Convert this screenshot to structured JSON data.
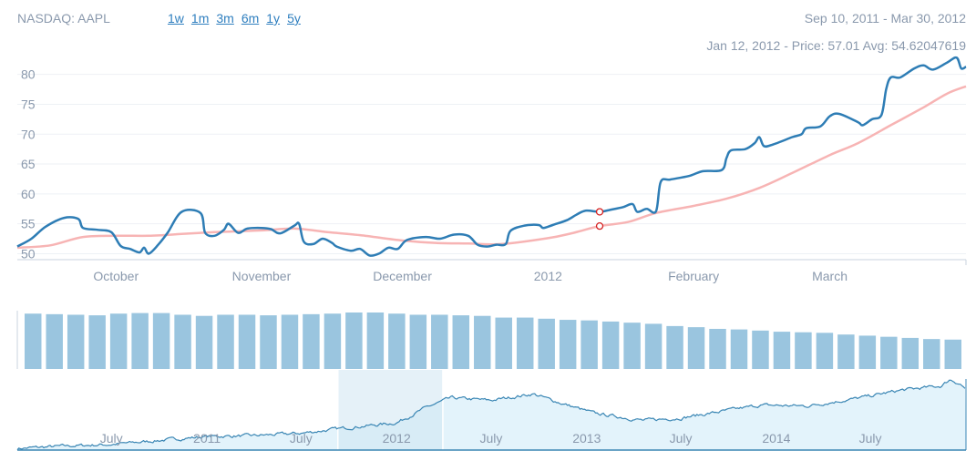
{
  "header": {
    "ticker": "NASDAQ: AAPL",
    "ranges": [
      "1w",
      "1m",
      "3m",
      "6m",
      "1y",
      "5y"
    ],
    "date_range": "Sep 10, 2011 - Mar 30, 2012",
    "tooltip": "Jan 12, 2012 - Price: 57.01 Avg: 54.62047619"
  },
  "colors": {
    "price": "#2e7db5",
    "avg": "#f7b4b4",
    "volume": "#9ac5df",
    "navigator_fill": "#e3f3fb",
    "navigator_line": "#3a86b4",
    "selection": "#cfe5f3",
    "marker": "#d42020",
    "text": "#8a99ad"
  },
  "chart_data": [
    {
      "type": "line",
      "name": "main-price-chart",
      "x_start": "2011-09-10",
      "x_end": "2012-03-30",
      "ylim": [
        49,
        83
      ],
      "yticks": [
        50,
        55,
        60,
        65,
        70,
        75,
        80
      ],
      "xticks": [
        {
          "date": "2011-10-01",
          "label": "October"
        },
        {
          "date": "2011-11-01",
          "label": "November"
        },
        {
          "date": "2011-12-01",
          "label": "December"
        },
        {
          "date": "2012-01-01",
          "label": "2012"
        },
        {
          "date": "2012-02-01",
          "label": "February"
        },
        {
          "date": "2012-03-01",
          "label": "March"
        }
      ],
      "grid": true,
      "highlight": {
        "date": "2012-01-12",
        "price": 57.01,
        "avg": 54.62047619
      },
      "series": [
        {
          "role": "price",
          "points": [
            [
              "2011-09-10",
              51.2
            ],
            [
              "2011-09-13",
              52.5
            ],
            [
              "2011-09-16",
              54.5
            ],
            [
              "2011-09-20",
              56.0
            ],
            [
              "2011-09-23",
              55.8
            ],
            [
              "2011-09-24",
              54.3
            ],
            [
              "2011-09-27",
              54.0
            ],
            [
              "2011-09-30",
              53.6
            ],
            [
              "2011-10-02",
              51.3
            ],
            [
              "2011-10-04",
              50.8
            ],
            [
              "2011-10-06",
              50.2
            ],
            [
              "2011-10-07",
              51.0
            ],
            [
              "2011-10-08",
              50.0
            ],
            [
              "2011-10-10",
              51.5
            ],
            [
              "2011-10-12",
              53.5
            ],
            [
              "2011-10-15",
              57.0
            ],
            [
              "2011-10-19",
              56.8
            ],
            [
              "2011-10-20",
              53.5
            ],
            [
              "2011-10-22",
              53.0
            ],
            [
              "2011-10-24",
              54.0
            ],
            [
              "2011-10-25",
              55.0
            ],
            [
              "2011-10-27",
              53.5
            ],
            [
              "2011-10-29",
              54.2
            ],
            [
              "2011-11-01",
              54.3
            ],
            [
              "2011-11-03",
              54.1
            ],
            [
              "2011-11-05",
              53.4
            ],
            [
              "2011-11-08",
              54.7
            ],
            [
              "2011-11-09",
              55.0
            ],
            [
              "2011-11-10",
              52.0
            ],
            [
              "2011-11-12",
              51.6
            ],
            [
              "2011-11-14",
              52.5
            ],
            [
              "2011-11-16",
              51.8
            ],
            [
              "2011-11-17",
              51.2
            ],
            [
              "2011-11-20",
              50.5
            ],
            [
              "2011-11-22",
              50.8
            ],
            [
              "2011-11-24",
              49.7
            ],
            [
              "2011-11-26",
              50.0
            ],
            [
              "2011-11-28",
              51.0
            ],
            [
              "2011-11-30",
              50.8
            ],
            [
              "2011-12-02",
              52.3
            ],
            [
              "2011-12-06",
              52.8
            ],
            [
              "2011-12-09",
              52.5
            ],
            [
              "2011-12-12",
              53.2
            ],
            [
              "2011-12-15",
              53.0
            ],
            [
              "2011-12-17",
              51.5
            ],
            [
              "2011-12-19",
              51.2
            ],
            [
              "2011-12-21",
              51.5
            ],
            [
              "2011-12-23",
              51.6
            ],
            [
              "2011-12-24",
              53.8
            ],
            [
              "2011-12-27",
              54.7
            ],
            [
              "2011-12-30",
              54.8
            ],
            [
              "2011-12-31",
              54.3
            ],
            [
              "2012-01-02",
              54.8
            ],
            [
              "2012-01-05",
              55.6
            ],
            [
              "2012-01-07",
              56.5
            ],
            [
              "2012-01-09",
              57.2
            ],
            [
              "2012-01-12",
              57.01
            ],
            [
              "2012-01-14",
              57.3
            ],
            [
              "2012-01-17",
              57.8
            ],
            [
              "2012-01-19",
              58.3
            ],
            [
              "2012-01-20",
              57.0
            ],
            [
              "2012-01-22",
              57.5
            ],
            [
              "2012-01-24",
              57.1
            ],
            [
              "2012-01-25",
              62.0
            ],
            [
              "2012-01-27",
              62.4
            ],
            [
              "2012-01-31",
              63.0
            ],
            [
              "2012-02-03",
              63.8
            ],
            [
              "2012-02-07",
              64.0
            ],
            [
              "2012-02-08",
              66.0
            ],
            [
              "2012-02-09",
              67.3
            ],
            [
              "2012-02-12",
              67.5
            ],
            [
              "2012-02-14",
              68.5
            ],
            [
              "2012-02-15",
              69.5
            ],
            [
              "2012-02-16",
              68.0
            ],
            [
              "2012-02-18",
              68.3
            ],
            [
              "2012-02-22",
              69.5
            ],
            [
              "2012-02-24",
              70.0
            ],
            [
              "2012-02-25",
              71.0
            ],
            [
              "2012-02-28",
              71.3
            ],
            [
              "2012-03-01",
              73.0
            ],
            [
              "2012-03-03",
              73.4
            ],
            [
              "2012-03-07",
              72.0
            ],
            [
              "2012-03-08",
              71.5
            ],
            [
              "2012-03-10",
              72.5
            ],
            [
              "2012-03-12",
              73.2
            ],
            [
              "2012-03-13",
              77.5
            ],
            [
              "2012-03-14",
              79.5
            ],
            [
              "2012-03-16",
              79.5
            ],
            [
              "2012-03-19",
              81.0
            ],
            [
              "2012-03-21",
              81.5
            ],
            [
              "2012-03-23",
              80.8
            ],
            [
              "2012-03-26",
              82.0
            ],
            [
              "2012-03-28",
              82.8
            ],
            [
              "2012-03-29",
              81.0
            ],
            [
              "2012-03-30",
              81.3
            ]
          ]
        },
        {
          "role": "avg",
          "points": [
            [
              "2011-09-10",
              51.0
            ],
            [
              "2011-09-17",
              51.4
            ],
            [
              "2011-09-24",
              52.8
            ],
            [
              "2011-10-01",
              53.0
            ],
            [
              "2011-10-08",
              53.0
            ],
            [
              "2011-10-15",
              53.3
            ],
            [
              "2011-10-22",
              53.6
            ],
            [
              "2011-11-01",
              53.9
            ],
            [
              "2011-11-08",
              54.2
            ],
            [
              "2011-11-15",
              53.6
            ],
            [
              "2011-11-22",
              53.1
            ],
            [
              "2011-12-01",
              52.2
            ],
            [
              "2011-12-08",
              51.8
            ],
            [
              "2011-12-15",
              51.7
            ],
            [
              "2011-12-22",
              51.6
            ],
            [
              "2012-01-01",
              52.6
            ],
            [
              "2012-01-06",
              53.4
            ],
            [
              "2012-01-12",
              54.62
            ],
            [
              "2012-01-18",
              55.3
            ],
            [
              "2012-01-24",
              56.8
            ],
            [
              "2012-02-01",
              58.0
            ],
            [
              "2012-02-08",
              59.2
            ],
            [
              "2012-02-15",
              61.0
            ],
            [
              "2012-02-22",
              63.5
            ],
            [
              "2012-03-01",
              66.5
            ],
            [
              "2012-03-07",
              68.5
            ],
            [
              "2012-03-14",
              71.5
            ],
            [
              "2012-03-21",
              74.5
            ],
            [
              "2012-03-26",
              76.8
            ],
            [
              "2012-03-30",
              78.0
            ]
          ]
        }
      ]
    },
    {
      "type": "bar",
      "name": "volume-chart",
      "values": [
        0.98,
        0.97,
        0.96,
        0.95,
        0.98,
        0.99,
        0.99,
        0.96,
        0.94,
        0.96,
        0.96,
        0.95,
        0.96,
        0.97,
        0.98,
        1.0,
        1.0,
        0.98,
        0.96,
        0.96,
        0.95,
        0.94,
        0.91,
        0.91,
        0.89,
        0.87,
        0.86,
        0.84,
        0.82,
        0.8,
        0.76,
        0.74,
        0.71,
        0.7,
        0.68,
        0.66,
        0.65,
        0.64,
        0.61,
        0.59,
        0.57,
        0.55,
        0.53,
        0.52
      ]
    },
    {
      "type": "area",
      "name": "navigator-chart",
      "x_start": "2010-01-01",
      "x_end": "2015-01-01",
      "ylim": [
        20,
        120
      ],
      "selection": [
        "2011-09-10",
        "2012-03-30"
      ],
      "xticks": [
        {
          "date": "2010-07-01",
          "label": "July"
        },
        {
          "date": "2011-01-01",
          "label": "2011"
        },
        {
          "date": "2011-07-01",
          "label": "July"
        },
        {
          "date": "2012-01-01",
          "label": "2012"
        },
        {
          "date": "2012-07-01",
          "label": "July"
        },
        {
          "date": "2013-01-01",
          "label": "2013"
        },
        {
          "date": "2013-07-01",
          "label": "July"
        },
        {
          "date": "2014-01-01",
          "label": "2014"
        },
        {
          "date": "2014-07-01",
          "label": "July"
        }
      ],
      "points": [
        [
          "2010-01-01",
          22
        ],
        [
          "2010-04-01",
          25
        ],
        [
          "2010-07-01",
          27
        ],
        [
          "2010-10-01",
          32
        ],
        [
          "2011-01-01",
          37
        ],
        [
          "2011-04-01",
          38
        ],
        [
          "2011-07-01",
          41
        ],
        [
          "2011-10-01",
          48
        ],
        [
          "2012-01-01",
          54
        ],
        [
          "2012-03-01",
          74
        ],
        [
          "2012-04-15",
          85
        ],
        [
          "2012-07-01",
          82
        ],
        [
          "2012-09-20",
          90
        ],
        [
          "2012-11-15",
          78
        ],
        [
          "2013-01-15",
          66
        ],
        [
          "2013-04-20",
          57
        ],
        [
          "2013-07-01",
          60
        ],
        [
          "2013-09-15",
          68
        ],
        [
          "2013-12-01",
          76
        ],
        [
          "2014-03-01",
          75
        ],
        [
          "2014-06-01",
          84
        ],
        [
          "2014-09-01",
          95
        ],
        [
          "2014-11-15",
          100
        ],
        [
          "2014-12-01",
          108
        ],
        [
          "2014-12-20",
          103
        ],
        [
          "2015-01-01",
          96
        ]
      ]
    }
  ]
}
